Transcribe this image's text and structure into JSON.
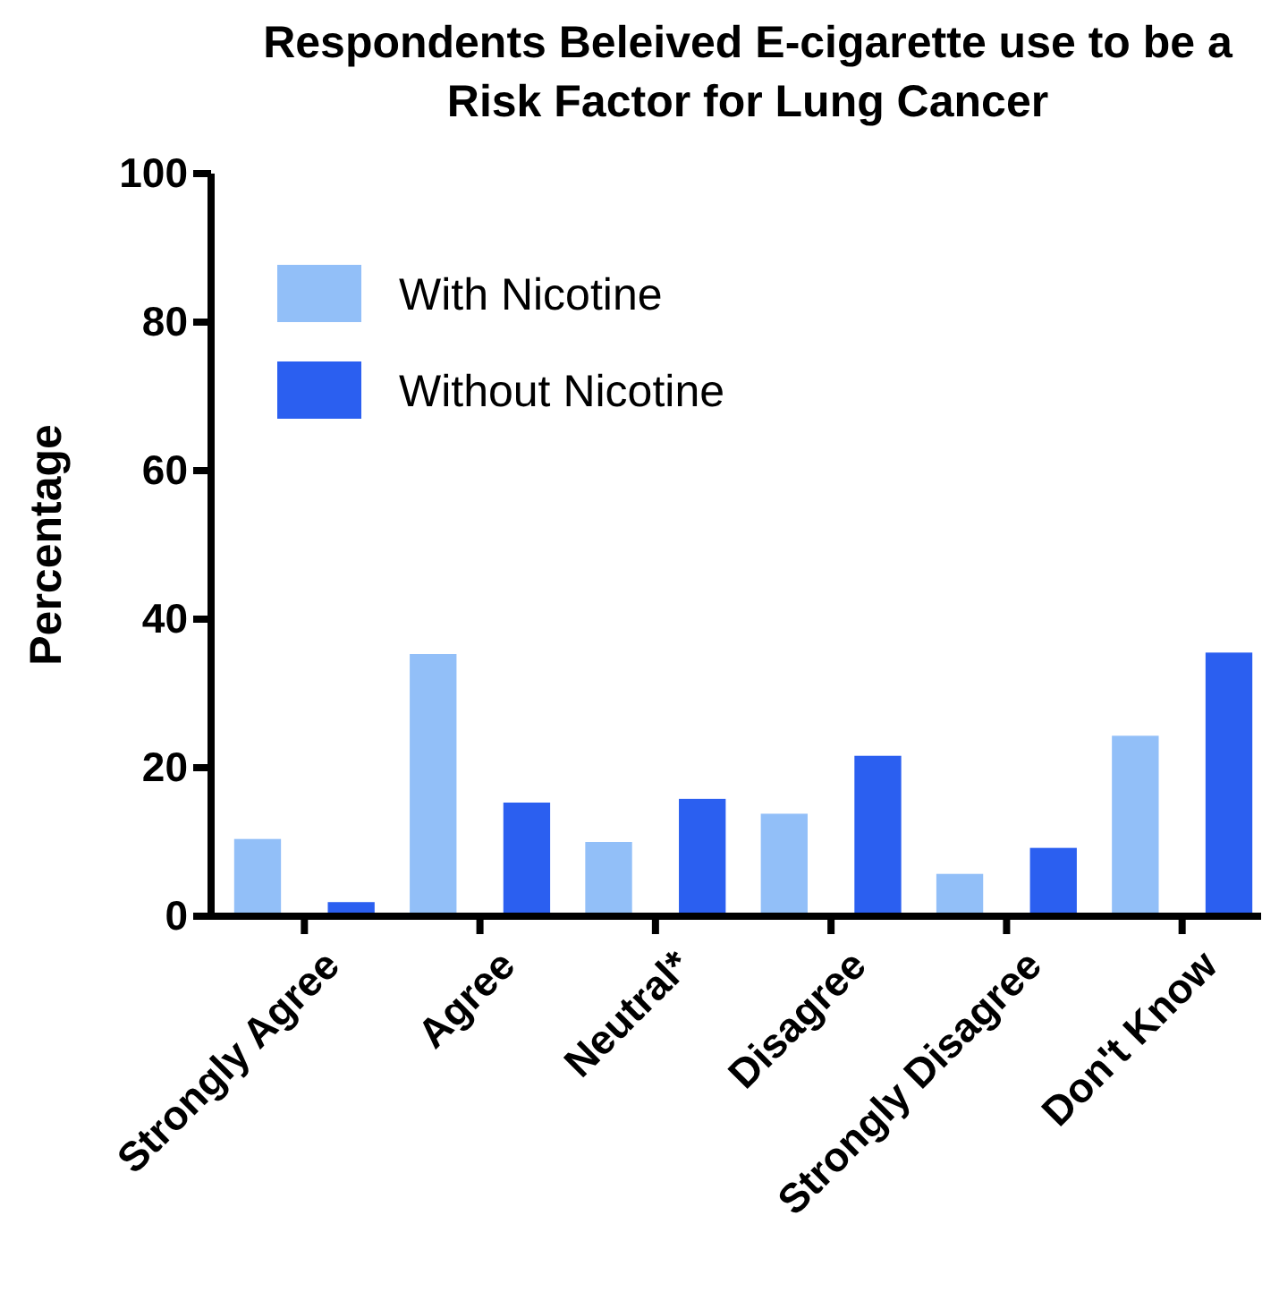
{
  "chart_data": {
    "type": "bar",
    "title": "Respondents Beleived E-cigarette use to be a Risk Factor for Lung Cancer",
    "ylabel": "Percentage",
    "categories": [
      "Strongly Agree",
      "Agree",
      "Neutral*",
      "Disagree",
      "Strongly Disagree",
      "Don't Know"
    ],
    "series": [
      {
        "name": "With Nicotine",
        "color": "#92bff8",
        "values": [
          10.4,
          35.3,
          10.0,
          13.8,
          5.7,
          24.3
        ]
      },
      {
        "name": "Without Nicotine",
        "color": "#2b5ff0",
        "values": [
          1.9,
          15.3,
          15.8,
          21.6,
          9.2,
          35.5
        ]
      }
    ],
    "ylim": [
      0,
      100
    ],
    "yticks": [
      0,
      20,
      40,
      60,
      80,
      100
    ],
    "grid": false,
    "legend": "top left"
  }
}
